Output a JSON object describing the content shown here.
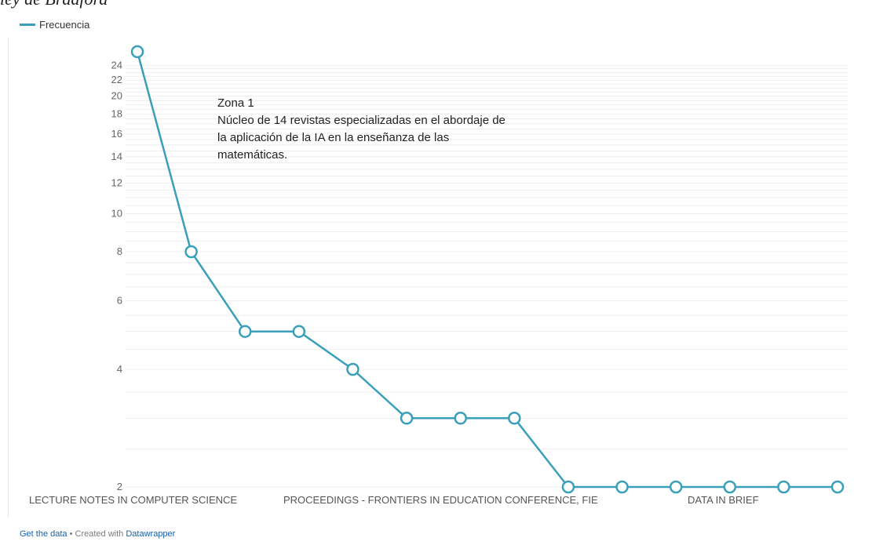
{
  "page": {
    "top_caption": "ley de Bradford",
    "footer": {
      "get_data": "Get the data",
      "separator": "•",
      "created_with": "Created with",
      "tool": "Datawrapper"
    }
  },
  "colors": {
    "line": "#3a9fb8",
    "grid": "#e3e3e3",
    "marker_fill": "#ffffff"
  },
  "chart_data": {
    "type": "line",
    "title": "",
    "xlabel": "",
    "ylabel": "",
    "yscale": "log",
    "ylim": [
      2,
      28
    ],
    "grid": true,
    "legend_position": "top-left",
    "y_ticks": [
      2,
      4,
      6,
      8,
      10,
      12,
      14,
      16,
      18,
      20,
      22,
      24
    ],
    "x_labels": [
      {
        "index": 0,
        "text": "LECTURE NOTES IN COMPUTER SCIENCE"
      },
      {
        "index": 3,
        "text": "PROCEEDINGS - FRONTIERS IN EDUCATION CONFERENCE, FIE"
      },
      {
        "index": 10,
        "text": "DATA IN BRIEF"
      }
    ],
    "series": [
      {
        "name": "Frecuencia",
        "color": "#3a9fb8",
        "values": [
          26,
          8,
          5,
          5,
          4,
          3,
          3,
          3,
          2,
          2,
          2,
          2,
          2,
          2
        ]
      }
    ],
    "annotation": {
      "lines": [
        "Zona 1",
        "Núcleo de 14 revistas especializadas en el abordaje de",
        "la aplicación de la IA en la enseñanza de las",
        "matemáticas."
      ]
    }
  }
}
